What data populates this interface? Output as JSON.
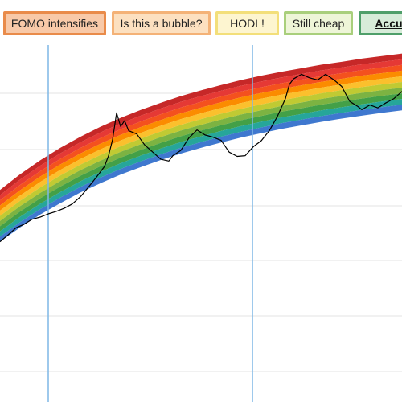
{
  "legend": {
    "buttons": [
      {
        "label": "FOMO intensifies",
        "bg": "#f8c9a8",
        "border": "#e98b4a",
        "active": false
      },
      {
        "label": "Is this a bubble?",
        "bg": "#fce0c0",
        "border": "#f4b277",
        "active": false
      },
      {
        "label": "HODL!",
        "bg": "#fdf5d0",
        "border": "#f3df7a",
        "active": false
      },
      {
        "label": "Still cheap",
        "bg": "#eef5d8",
        "border": "#a9cf7c",
        "active": false
      },
      {
        "label": "Accumulate",
        "bg": "#d7ecd9",
        "border": "#4f9f6a",
        "active": true
      }
    ]
  },
  "chart_data": {
    "type": "area",
    "title": "",
    "xlabel": "",
    "ylabel": "",
    "x": [
      0,
      0.05,
      0.1,
      0.15,
      0.2,
      0.25,
      0.3,
      0.35,
      0.4,
      0.45,
      0.5,
      0.55,
      0.6,
      0.65,
      0.7,
      0.75,
      0.8,
      0.85,
      0.9,
      0.95,
      1.0
    ],
    "xlim": [
      0,
      1
    ],
    "ylim": [
      0,
      1
    ],
    "grid": true,
    "bands": [
      {
        "name": "",
        "color": "#c62828"
      },
      {
        "name": "",
        "color": "#e53935"
      },
      {
        "name": "",
        "color": "#f4511e"
      },
      {
        "name": "",
        "color": "#fb8c00"
      },
      {
        "name": "",
        "color": "#fbc02d"
      },
      {
        "name": "",
        "color": "#c0ca33"
      },
      {
        "name": "",
        "color": "#7cb342"
      },
      {
        "name": "",
        "color": "#43a047"
      },
      {
        "name": "",
        "color": "#26a69a"
      },
      {
        "name": "",
        "color": "#3f78cf"
      }
    ],
    "band_top": [
      0.594,
      0.638,
      0.677,
      0.712,
      0.743,
      0.771,
      0.796,
      0.818,
      0.838,
      0.857,
      0.873,
      0.888,
      0.902,
      0.914,
      0.925,
      0.935,
      0.945,
      0.953,
      0.962,
      0.969,
      0.976
    ],
    "band_bottom": [
      0.449,
      0.489,
      0.525,
      0.557,
      0.587,
      0.613,
      0.637,
      0.658,
      0.678,
      0.696,
      0.712,
      0.727,
      0.741,
      0.753,
      0.765,
      0.775,
      0.785,
      0.794,
      0.802,
      0.81,
      0.817
    ],
    "vertical_lines": [
      0.12,
      0.628
    ],
    "series": [
      {
        "color": "#000000",
        "x": [
          0,
          0.02,
          0.04,
          0.06,
          0.08,
          0.1,
          0.12,
          0.14,
          0.16,
          0.18,
          0.2,
          0.22,
          0.24,
          0.26,
          0.27,
          0.28,
          0.29,
          0.3,
          0.31,
          0.32,
          0.34,
          0.36,
          0.38,
          0.4,
          0.42,
          0.43,
          0.45,
          0.47,
          0.49,
          0.51,
          0.53,
          0.55,
          0.57,
          0.59,
          0.61,
          0.63,
          0.65,
          0.67,
          0.69,
          0.71,
          0.72,
          0.73,
          0.75,
          0.77,
          0.79,
          0.81,
          0.83,
          0.85,
          0.87,
          0.89,
          0.9,
          0.92,
          0.94,
          0.96,
          0.98,
          1.0
        ],
        "y": [
          0.449,
          0.468,
          0.488,
          0.498,
          0.512,
          0.518,
          0.527,
          0.534,
          0.543,
          0.555,
          0.575,
          0.602,
          0.63,
          0.66,
          0.69,
          0.735,
          0.81,
          0.772,
          0.788,
          0.76,
          0.751,
          0.72,
          0.7,
          0.68,
          0.675,
          0.69,
          0.705,
          0.74,
          0.762,
          0.748,
          0.742,
          0.733,
          0.7,
          0.688,
          0.69,
          0.715,
          0.732,
          0.76,
          0.8,
          0.85,
          0.89,
          0.905,
          0.918,
          0.908,
          0.902,
          0.918,
          0.903,
          0.884,
          0.842,
          0.828,
          0.819,
          0.832,
          0.824,
          0.838,
          0.85,
          0.87
        ]
      }
    ]
  }
}
